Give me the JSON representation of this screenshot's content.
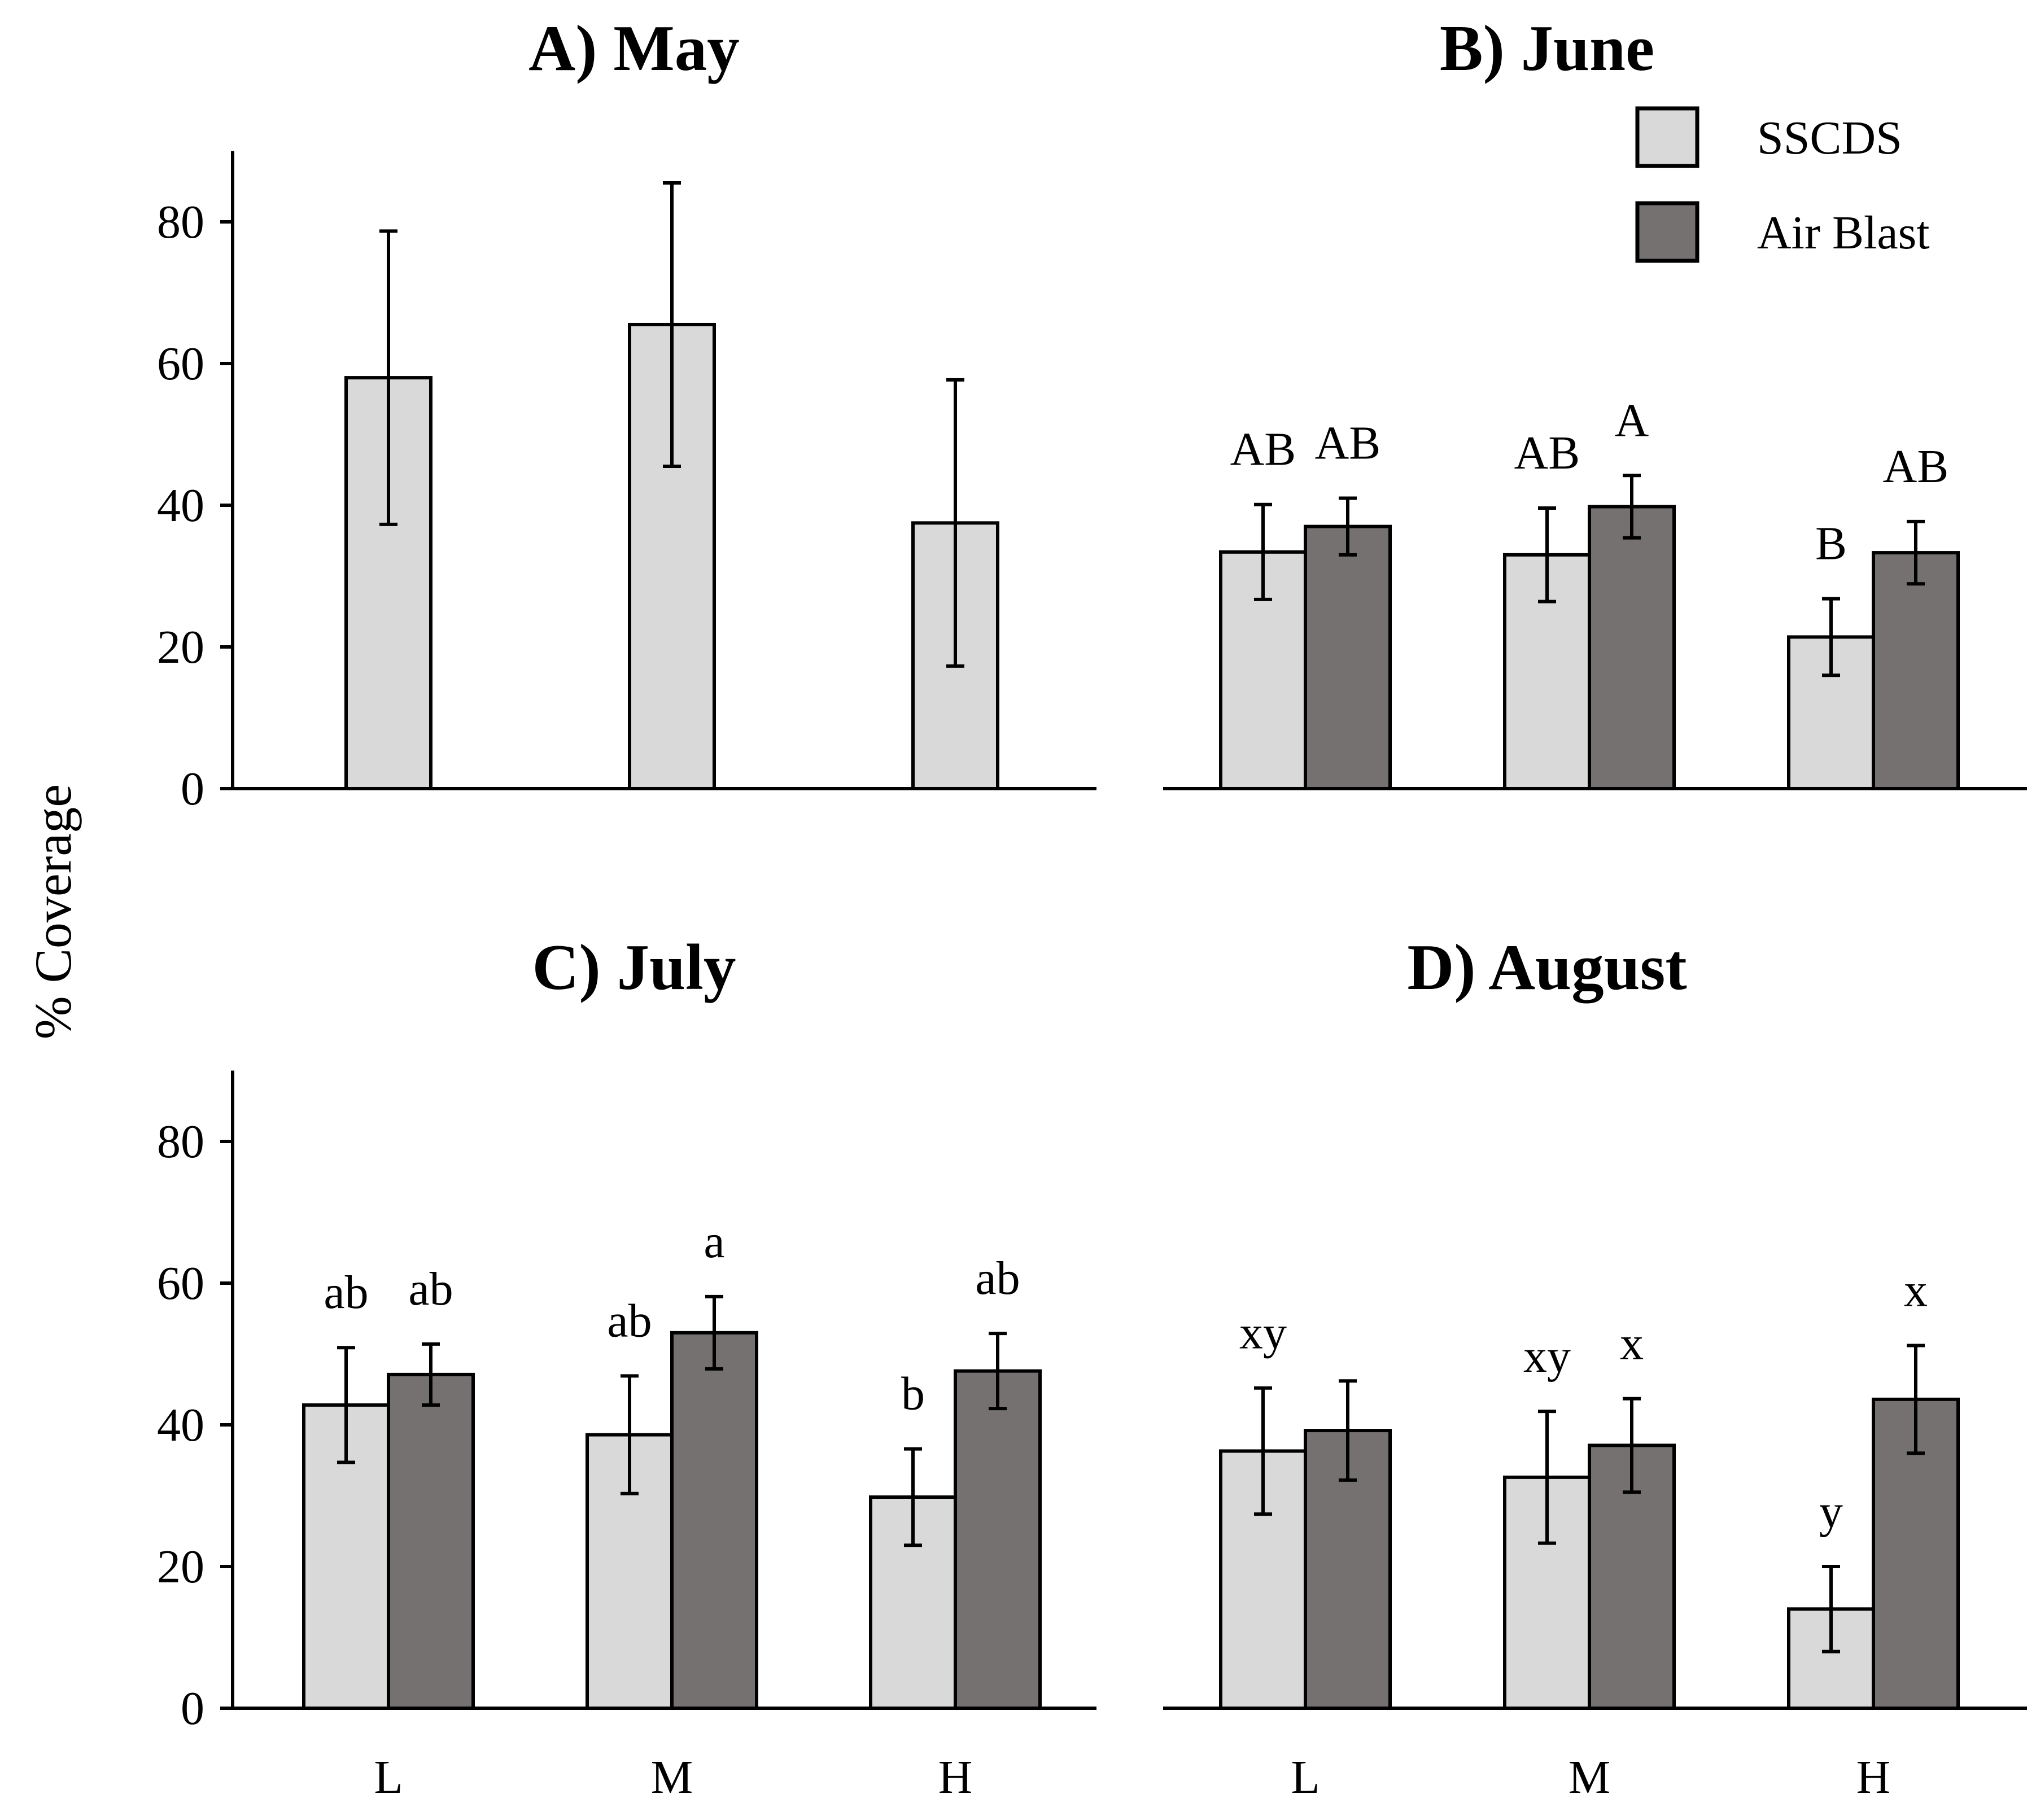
{
  "chart_data": {
    "type": "bar",
    "ylabel": "% Coverage",
    "categories": [
      "L",
      "M",
      "H"
    ],
    "yticks": [
      "0",
      "20",
      "40",
      "60",
      "80"
    ],
    "ylim": [
      0,
      90
    ],
    "legend": {
      "position": "top-right",
      "entries": [
        {
          "name": "SSCDS",
          "color": "#d9d9d9"
        },
        {
          "name": "Air Blast",
          "color": "#767171"
        }
      ]
    },
    "panels": [
      {
        "title": "A) May",
        "series": [
          {
            "name": "SSCDS",
            "values": [
              58,
              65.5,
              37.5
            ],
            "errors": [
              20.7,
              20,
              20.2
            ],
            "letters": [
              "",
              "",
              ""
            ]
          }
        ]
      },
      {
        "title": "B) June",
        "series": [
          {
            "name": "SSCDS",
            "values": [
              33.4,
              33.0,
              21.4
            ],
            "errors": [
              6.7,
              6.6,
              5.4
            ],
            "letters": [
              "AB",
              "AB",
              "B"
            ]
          },
          {
            "name": "Air Blast",
            "values": [
              37.0,
              39.8,
              33.3
            ],
            "errors": [
              4.0,
              4.4,
              4.4
            ],
            "letters": [
              "AB",
              "A",
              "AB"
            ]
          }
        ]
      },
      {
        "title": "C) July",
        "series": [
          {
            "name": "SSCDS",
            "values": [
              42.8,
              38.6,
              29.8
            ],
            "errors": [
              8.1,
              8.3,
              6.8
            ],
            "letters": [
              "ab",
              "ab",
              "b"
            ]
          },
          {
            "name": "Air Blast",
            "values": [
              47.1,
              53.0,
              47.6
            ],
            "errors": [
              4.3,
              5.1,
              5.3
            ],
            "letters": [
              "ab",
              "a",
              "ab"
            ]
          }
        ]
      },
      {
        "title": "D) August",
        "series": [
          {
            "name": "SSCDS",
            "values": [
              36.3,
              32.6,
              14.0
            ],
            "errors": [
              8.9,
              9.3,
              6.0
            ],
            "letters": [
              "xy",
              "xy",
              "y"
            ]
          },
          {
            "name": "Air Blast",
            "values": [
              39.2,
              37.1,
              43.6
            ],
            "errors": [
              7.0,
              6.6,
              7.6
            ],
            "letters": [
              "",
              "x",
              "x"
            ]
          }
        ]
      }
    ]
  }
}
